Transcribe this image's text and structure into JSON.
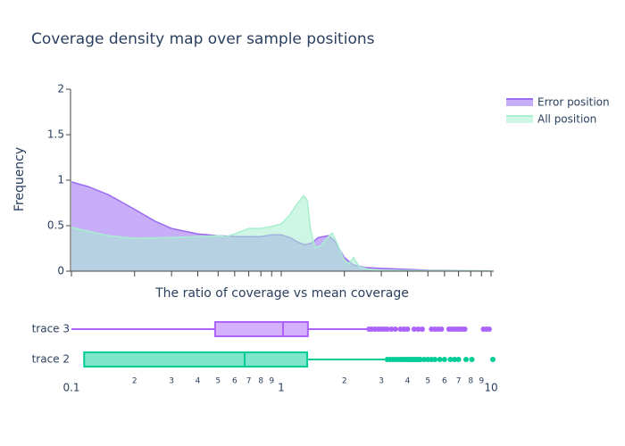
{
  "chart_data": [
    {
      "type": "area",
      "title": "Coverage density map over sample positions",
      "x_label": "The ratio of coverage vs mean coverage",
      "y_label": "Frequency",
      "log_x": true,
      "xlim": [
        0.1,
        10.3
      ],
      "xticks": [
        0.1,
        0.2,
        0.3,
        0.4,
        0.5,
        0.6,
        0.7,
        0.8,
        0.9,
        1,
        2,
        3,
        4,
        5,
        6,
        7,
        8,
        9,
        10
      ],
      "ylim": [
        0,
        2
      ],
      "yticks": [
        0,
        {
          "value": 0.5,
          "label": "0.5"
        },
        1,
        {
          "value": 1.5,
          "label": "1.5"
        },
        2
      ],
      "legend": "right",
      "series": [
        {
          "name": "Error position",
          "color": "#9b6bf2",
          "x": [
            0.1,
            0.12,
            0.15,
            0.2,
            0.25,
            0.3,
            0.4,
            0.5,
            0.6,
            0.7,
            0.8,
            0.9,
            1.0,
            1.1,
            1.2,
            1.3,
            1.4,
            1.5,
            1.68,
            1.8,
            2.0,
            2.2,
            2.5,
            3,
            4,
            5,
            7,
            10
          ],
          "values": [
            0.98,
            0.93,
            0.84,
            0.68,
            0.55,
            0.47,
            0.41,
            0.39,
            0.38,
            0.38,
            0.38,
            0.4,
            0.4,
            0.37,
            0.32,
            0.29,
            0.31,
            0.37,
            0.39,
            0.33,
            0.15,
            0.07,
            0.04,
            0.03,
            0.02,
            0.01,
            0.005,
            0.003
          ]
        },
        {
          "name": "All position",
          "color": "#a8efcf",
          "x": [
            0.1,
            0.12,
            0.15,
            0.2,
            0.3,
            0.4,
            0.5,
            0.55,
            0.6,
            0.7,
            0.8,
            0.9,
            1.0,
            1.1,
            1.2,
            1.28,
            1.33,
            1.38,
            1.45,
            1.55,
            1.65,
            1.75,
            1.85,
            2.0,
            2.1,
            2.21,
            2.35,
            2.6,
            3,
            5,
            10
          ],
          "values": [
            0.48,
            0.44,
            0.39,
            0.36,
            0.37,
            0.38,
            0.39,
            0.38,
            0.41,
            0.47,
            0.47,
            0.49,
            0.52,
            0.62,
            0.75,
            0.83,
            0.78,
            0.45,
            0.26,
            0.28,
            0.36,
            0.42,
            0.3,
            0.12,
            0.08,
            0.15,
            0.05,
            0.02,
            0.01,
            0.005,
            0.002
          ]
        }
      ]
    },
    {
      "type": "box",
      "log_x": true,
      "xlim": [
        0.1,
        10.3
      ],
      "xticks": [
        {
          "value": 0.1,
          "label": "0.1"
        },
        {
          "value": 0.2,
          "label": "2"
        },
        {
          "value": 0.3,
          "label": "3"
        },
        {
          "value": 0.4,
          "label": "4"
        },
        {
          "value": 0.5,
          "label": "5"
        },
        {
          "value": 0.6,
          "label": "6"
        },
        {
          "value": 0.7,
          "label": "7"
        },
        {
          "value": 0.8,
          "label": "8"
        },
        {
          "value": 0.9,
          "label": "9"
        },
        1,
        2,
        3,
        4,
        5,
        6,
        7,
        8,
        9,
        10
      ],
      "series": [
        {
          "name": "trace 3",
          "color": "#ab63fa",
          "min": 0.1,
          "q1": 0.484,
          "median": 1.02,
          "q3": 1.34,
          "max": 2.59,
          "outliers": [
            2.62,
            2.7,
            2.8,
            2.9,
            3.0,
            3.1,
            3.2,
            3.35,
            3.5,
            3.7,
            3.85,
            4.0,
            4.3,
            4.5,
            4.7,
            5.2,
            5.4,
            5.6,
            5.8,
            6.3,
            6.5,
            6.7,
            6.9,
            7.1,
            7.3,
            7.5,
            9.2,
            9.5,
            9.8
          ]
        },
        {
          "name": "trace 2",
          "color": "#00cc96",
          "min": 0.115,
          "q1": 0.115,
          "median": 0.669,
          "q3": 1.33,
          "max": 3.12,
          "outliers": [
            3.2,
            3.3,
            3.4,
            3.5,
            3.6,
            3.7,
            3.8,
            3.9,
            4.0,
            4.1,
            4.2,
            4.3,
            4.4,
            4.5,
            4.6,
            4.8,
            5.0,
            5.2,
            5.4,
            5.7,
            6.0,
            6.4,
            6.7,
            7.0,
            7.6,
            8.1,
            10.2
          ]
        }
      ]
    }
  ]
}
